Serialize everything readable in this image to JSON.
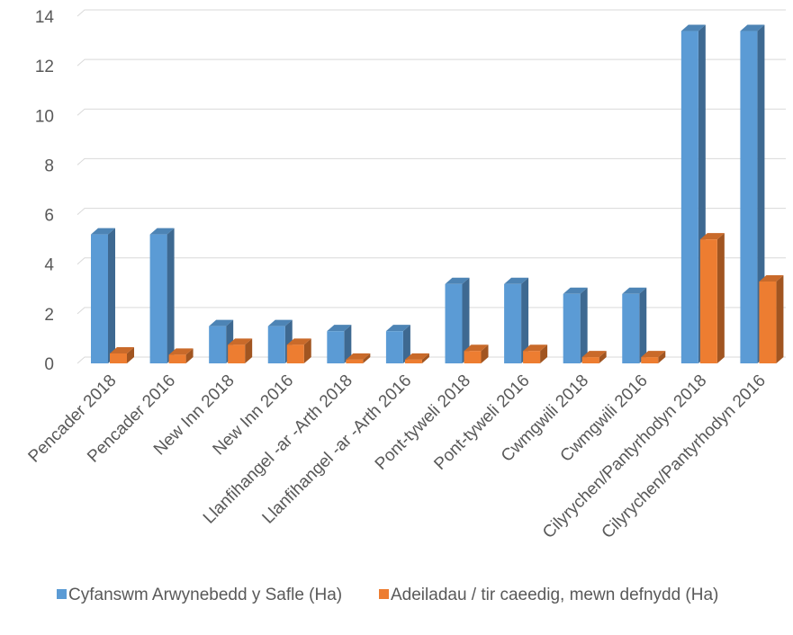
{
  "chart_data": {
    "type": "bar",
    "categories": [
      "Pencader 2018",
      "Pencader 2016",
      "New Inn 2018",
      "New Inn 2016",
      "Llanfihangel -ar -Arth 2018",
      "Llanfihangel -ar -Arth 2016",
      "Pont-tyweli 2018",
      "Pont-tyweli 2016",
      "Cwmgwili 2018",
      "Cwmgwili 2016",
      "Cilyrychen/Pantyrhodyn 2018",
      "Cilyrychen/Pantyrhodyn 2016"
    ],
    "series": [
      {
        "name": "Cyfanswm Arwynebedd y Safle (Ha)",
        "color": "#5b9bd5",
        "values": [
          5.2,
          5.2,
          1.5,
          1.5,
          1.3,
          1.3,
          3.2,
          3.2,
          2.8,
          2.8,
          13.4,
          13.4
        ]
      },
      {
        "name": "Adeiladau / tir caeedig, mewn defnydd (Ha)",
        "color": "#ed7d31",
        "values": [
          0.4,
          0.35,
          0.75,
          0.75,
          0.15,
          0.15,
          0.5,
          0.5,
          0.25,
          0.25,
          5.0,
          3.3
        ]
      }
    ],
    "y_ticks": [
      0,
      2,
      4,
      6,
      8,
      10,
      12,
      14
    ],
    "ylim": [
      0,
      14
    ],
    "grid": true,
    "legend_position": "bottom",
    "title": "",
    "xlabel": "",
    "ylabel": ""
  }
}
